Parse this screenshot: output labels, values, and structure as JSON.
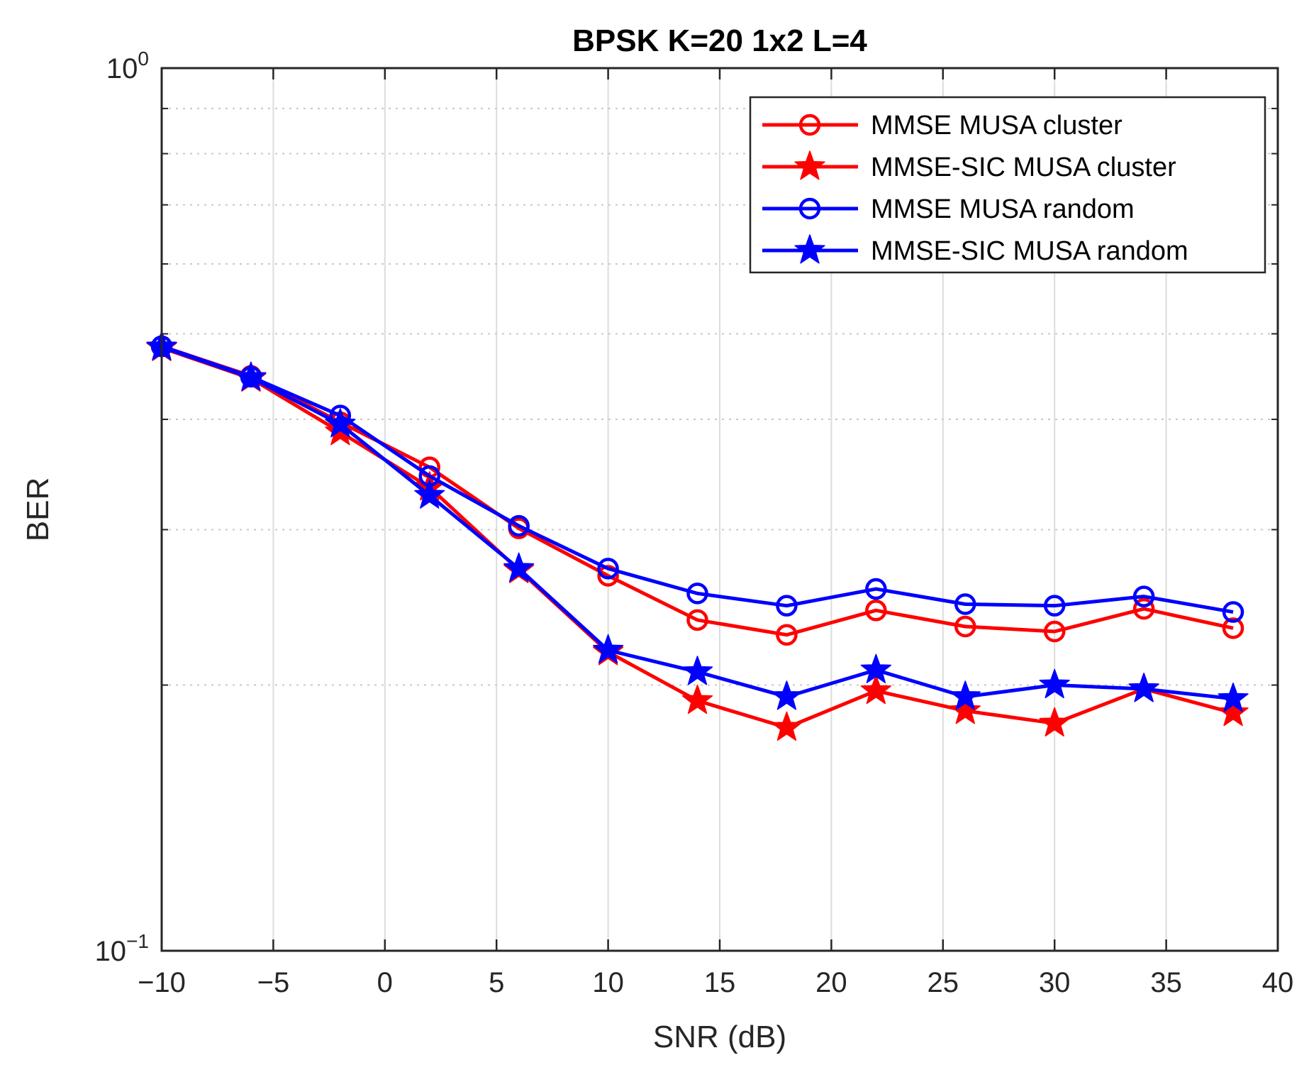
{
  "chart_data": {
    "type": "line",
    "title": "BPSK K=20 1x2 L=4",
    "xlabel": "SNR (dB)",
    "ylabel": "BER",
    "xlim": [
      -10,
      40
    ],
    "ylim": [
      0.1,
      1
    ],
    "yscale": "log",
    "grid": true,
    "legend_position": "top-right",
    "xticks": [
      -10,
      -5,
      0,
      5,
      10,
      15,
      20,
      25,
      30,
      35,
      40
    ],
    "xtick_labels": [
      "−10",
      "−5",
      "0",
      "5",
      "10",
      "15",
      "20",
      "25",
      "30",
      "35",
      "40"
    ],
    "yticks": [
      0.1,
      1
    ],
    "ytick_base": "10",
    "ytick_exponents": [
      "−1",
      "0"
    ],
    "x": [
      -10,
      -6,
      -2,
      2,
      6,
      10,
      14,
      18,
      22,
      26,
      30,
      34,
      38
    ],
    "series": [
      {
        "name": "MMSE MUSA cluster",
        "color": "#ff0000",
        "marker": "circle",
        "values": [
          0.484,
          0.448,
          0.397,
          0.353,
          0.301,
          0.266,
          0.237,
          0.228,
          0.243,
          0.233,
          0.23,
          0.244,
          0.232
        ]
      },
      {
        "name": "MMSE-SIC MUSA cluster",
        "color": "#ff0000",
        "marker": "star",
        "values": [
          0.482,
          0.445,
          0.387,
          0.335,
          0.27,
          0.218,
          0.192,
          0.179,
          0.197,
          0.187,
          0.181,
          0.198,
          0.186
        ]
      },
      {
        "name": "MMSE MUSA random",
        "color": "#0000ff",
        "marker": "circle",
        "values": [
          0.484,
          0.447,
          0.404,
          0.345,
          0.303,
          0.271,
          0.254,
          0.246,
          0.257,
          0.247,
          0.246,
          0.252,
          0.242
        ]
      },
      {
        "name": "MMSE-SIC MUSA random",
        "color": "#0000ff",
        "marker": "star",
        "values": [
          0.483,
          0.446,
          0.395,
          0.328,
          0.271,
          0.219,
          0.207,
          0.194,
          0.208,
          0.194,
          0.2,
          0.198,
          0.193
        ]
      }
    ]
  }
}
